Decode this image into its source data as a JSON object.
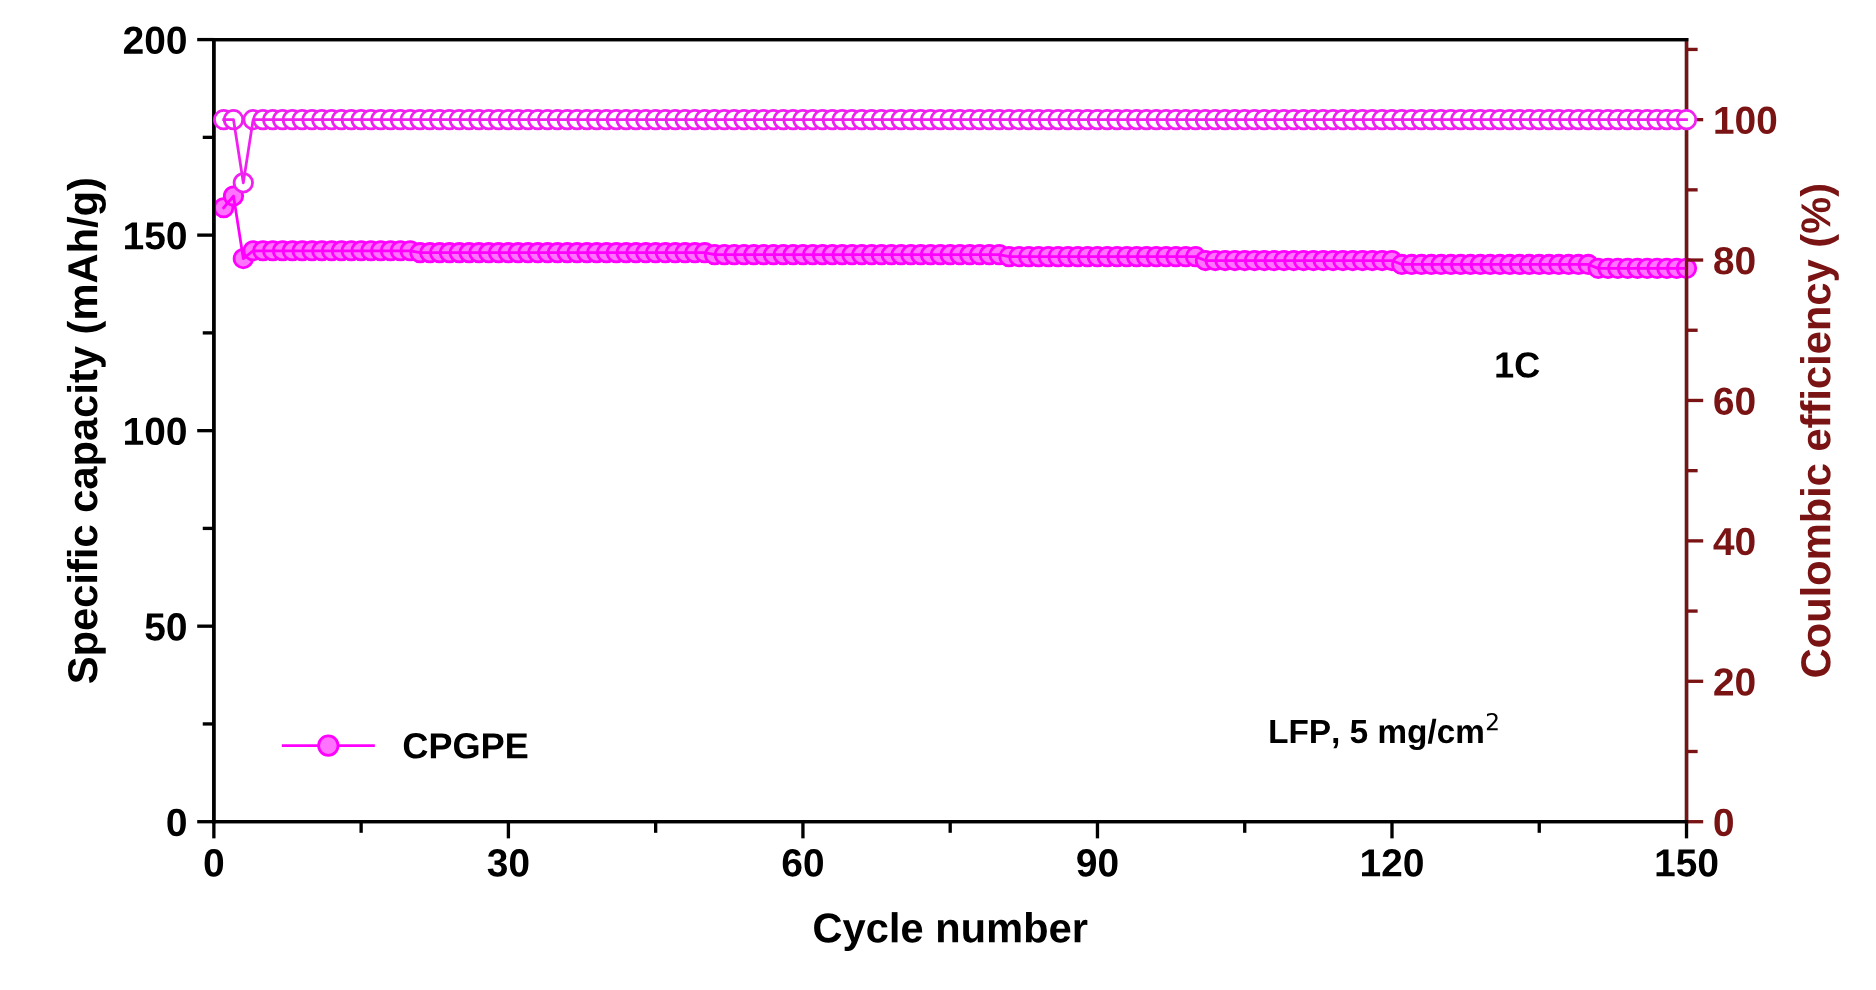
{
  "chart_data": {
    "type": "line",
    "xlabel": "Cycle number",
    "ylabel": "Specific capacity (mAh/g)",
    "y2label": "Coulombic efficiency (%)",
    "xlim": [
      0,
      150
    ],
    "xticks": [
      0,
      30,
      60,
      90,
      120,
      150
    ],
    "ylim": [
      0,
      200
    ],
    "yticks": [
      0,
      50,
      100,
      150,
      200
    ],
    "y2lim": [
      0,
      111.4
    ],
    "y2ticks": [
      0,
      20,
      40,
      60,
      80,
      100
    ],
    "legend": "bottom left",
    "grid": false,
    "marker": "circle",
    "line_style": "solid",
    "annotations": [
      "1C",
      "LFP, 5 mg/cm$^{2}$"
    ],
    "series": [
      {
        "name": "CPGPE",
        "color": "#ff00ff",
        "x": [
          1,
          2,
          3,
          4,
          5,
          6,
          7,
          8,
          9,
          10,
          11,
          12,
          13,
          14,
          15,
          16,
          17,
          18,
          19,
          20,
          21,
          22,
          23,
          24,
          25,
          26,
          27,
          28,
          29,
          30,
          31,
          32,
          33,
          34,
          35,
          36,
          37,
          38,
          39,
          40,
          41,
          42,
          43,
          44,
          45,
          46,
          47,
          48,
          49,
          50,
          51,
          52,
          53,
          54,
          55,
          56,
          57,
          58,
          59,
          60,
          61,
          62,
          63,
          64,
          65,
          66,
          67,
          68,
          69,
          70,
          71,
          72,
          73,
          74,
          75,
          76,
          77,
          78,
          79,
          80,
          81,
          82,
          83,
          84,
          85,
          86,
          87,
          88,
          89,
          90,
          91,
          92,
          93,
          94,
          95,
          96,
          97,
          98,
          99,
          100,
          101,
          102,
          103,
          104,
          105,
          106,
          107,
          108,
          109,
          110,
          111,
          112,
          113,
          114,
          115,
          116,
          117,
          118,
          119,
          120,
          121,
          122,
          123,
          124,
          125,
          126,
          127,
          128,
          129,
          130,
          131,
          132,
          133,
          134,
          135,
          136,
          137,
          138,
          139,
          140,
          141,
          142,
          143,
          144,
          145,
          146,
          147,
          148,
          149,
          150
        ],
        "values": [
          157,
          160,
          144,
          146,
          146,
          146,
          146,
          146,
          146,
          146,
          146,
          146,
          146,
          146,
          146,
          146,
          146,
          146,
          146,
          146,
          145.5,
          145.5,
          145.5,
          145.5,
          145.5,
          145.5,
          145.5,
          145.5,
          145.5,
          145.5,
          145.5,
          145.5,
          145.5,
          145.5,
          145.5,
          145.5,
          145.5,
          145.5,
          145.5,
          145.5,
          145.5,
          145.5,
          145.5,
          145.5,
          145.5,
          145.5,
          145.5,
          145.5,
          145.5,
          145.5,
          145,
          145,
          145,
          145,
          145,
          145,
          145,
          145,
          145,
          145,
          145,
          145,
          145,
          145,
          145,
          145,
          145,
          145,
          145,
          145,
          145,
          145,
          145,
          145,
          145,
          145,
          145,
          145,
          145,
          145,
          144.5,
          144.5,
          144.5,
          144.5,
          144.5,
          144.5,
          144.5,
          144.5,
          144.5,
          144.5,
          144.5,
          144.5,
          144.5,
          144.5,
          144.5,
          144.5,
          144.5,
          144.5,
          144.5,
          144.5,
          143.5,
          143.5,
          143.5,
          143.5,
          143.5,
          143.5,
          143.5,
          143.5,
          143.5,
          143.5,
          143.5,
          143.5,
          143.5,
          143.5,
          143.5,
          143.5,
          143.5,
          143.5,
          143.5,
          143.5,
          142.5,
          142.5,
          142.5,
          142.5,
          142.5,
          142.5,
          142.5,
          142.5,
          142.5,
          142.5,
          142.5,
          142.5,
          142.5,
          142.5,
          142.5,
          142.5,
          142.5,
          142.5,
          142.5,
          142.5,
          141.5,
          141.5,
          141.5,
          141.5,
          141.5,
          141.5,
          141.5,
          141.5,
          141.5,
          141.5
        ]
      },
      {
        "color": "#f020f0",
        "axis": "y2",
        "x": [
          1,
          2,
          3,
          4,
          5,
          6,
          7,
          8,
          9,
          10,
          11,
          12,
          13,
          14,
          15,
          16,
          17,
          18,
          19,
          20,
          21,
          22,
          23,
          24,
          25,
          26,
          27,
          28,
          29,
          30,
          31,
          32,
          33,
          34,
          35,
          36,
          37,
          38,
          39,
          40,
          41,
          42,
          43,
          44,
          45,
          46,
          47,
          48,
          49,
          50,
          51,
          52,
          53,
          54,
          55,
          56,
          57,
          58,
          59,
          60,
          61,
          62,
          63,
          64,
          65,
          66,
          67,
          68,
          69,
          70,
          71,
          72,
          73,
          74,
          75,
          76,
          77,
          78,
          79,
          80,
          81,
          82,
          83,
          84,
          85,
          86,
          87,
          88,
          89,
          90,
          91,
          92,
          93,
          94,
          95,
          96,
          97,
          98,
          99,
          100,
          101,
          102,
          103,
          104,
          105,
          106,
          107,
          108,
          109,
          110,
          111,
          112,
          113,
          114,
          115,
          116,
          117,
          118,
          119,
          120,
          121,
          122,
          123,
          124,
          125,
          126,
          127,
          128,
          129,
          130,
          131,
          132,
          133,
          134,
          135,
          136,
          137,
          138,
          139,
          140,
          141,
          142,
          143,
          144,
          145,
          146,
          147,
          148,
          149,
          150
        ],
        "values": [
          100,
          100,
          91,
          100,
          100,
          100,
          100,
          100,
          100,
          100,
          100,
          100,
          100,
          100,
          100,
          100,
          100,
          100,
          100,
          100,
          100,
          100,
          100,
          100,
          100,
          100,
          100,
          100,
          100,
          100,
          100,
          100,
          100,
          100,
          100,
          100,
          100,
          100,
          100,
          100,
          100,
          100,
          100,
          100,
          100,
          100,
          100,
          100,
          100,
          100,
          100,
          100,
          100,
          100,
          100,
          100,
          100,
          100,
          100,
          100,
          100,
          100,
          100,
          100,
          100,
          100,
          100,
          100,
          100,
          100,
          100,
          100,
          100,
          100,
          100,
          100,
          100,
          100,
          100,
          100,
          100,
          100,
          100,
          100,
          100,
          100,
          100,
          100,
          100,
          100,
          100,
          100,
          100,
          100,
          100,
          100,
          100,
          100,
          100,
          100,
          100,
          100,
          100,
          100,
          100,
          100,
          100,
          100,
          100,
          100,
          100,
          100,
          100,
          100,
          100,
          100,
          100,
          100,
          100,
          100,
          100,
          100,
          100,
          100,
          100,
          100,
          100,
          100,
          100,
          100,
          100,
          100,
          100,
          100,
          100,
          100,
          100,
          100,
          100,
          100,
          100,
          100,
          100,
          100,
          100,
          100,
          100,
          100,
          100,
          100
        ]
      }
    ]
  }
}
